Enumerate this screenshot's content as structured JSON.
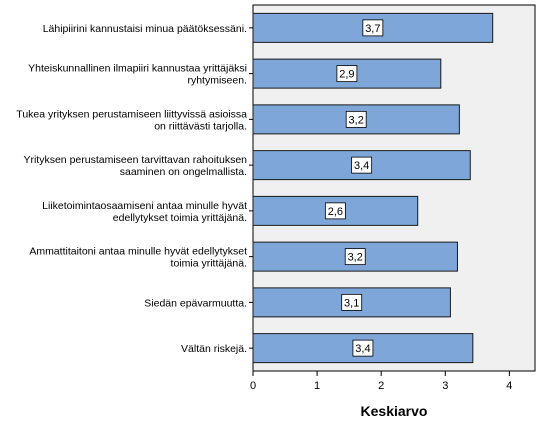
{
  "chart_data": {
    "type": "bar",
    "orientation": "horizontal",
    "categories": [
      [
        "Lähipiirini kannustaisi minua päätöksessäni."
      ],
      [
        "Yhteiskunnallinen ilmapiiri kannustaa yrittäjäksi",
        "ryhtymiseen."
      ],
      [
        "Tukea yrityksen perustamiseen liittyvissä asioissa",
        "on riittävästi tarjolla."
      ],
      [
        "Yrityksen perustamiseen tarvittavan rahoituksen",
        "saaminen on ongelmallista."
      ],
      [
        "Liiketoimintaosaamiseni antaa minulle hyvät",
        "edellytykset toimia yrittäjänä."
      ],
      [
        "Ammattitaitoni antaa minulle hyvät edellytykset",
        "toimia yrittäjänä."
      ],
      [
        "Siedän epävarmuutta."
      ],
      [
        "Vältän riskejä."
      ]
    ],
    "values": [
      3.74,
      2.93,
      3.22,
      3.39,
      2.57,
      3.19,
      3.08,
      3.43
    ],
    "data_labels": [
      "3,7",
      "2,9",
      "3,2",
      "3,4",
      "2,6",
      "3,2",
      "3,1",
      "3,4"
    ],
    "xlabel": "Keskiarvo",
    "xlim": [
      0,
      4.4
    ],
    "xticks": [
      "0",
      "1",
      "2",
      "3",
      "4"
    ],
    "xtick_values": [
      0,
      1,
      2,
      3,
      4
    ],
    "grid": false,
    "colors": {
      "bar_fill": "#7ea6d8",
      "bar_stroke": "#1a1a1a",
      "plot_background": "#f0f0f0"
    }
  }
}
